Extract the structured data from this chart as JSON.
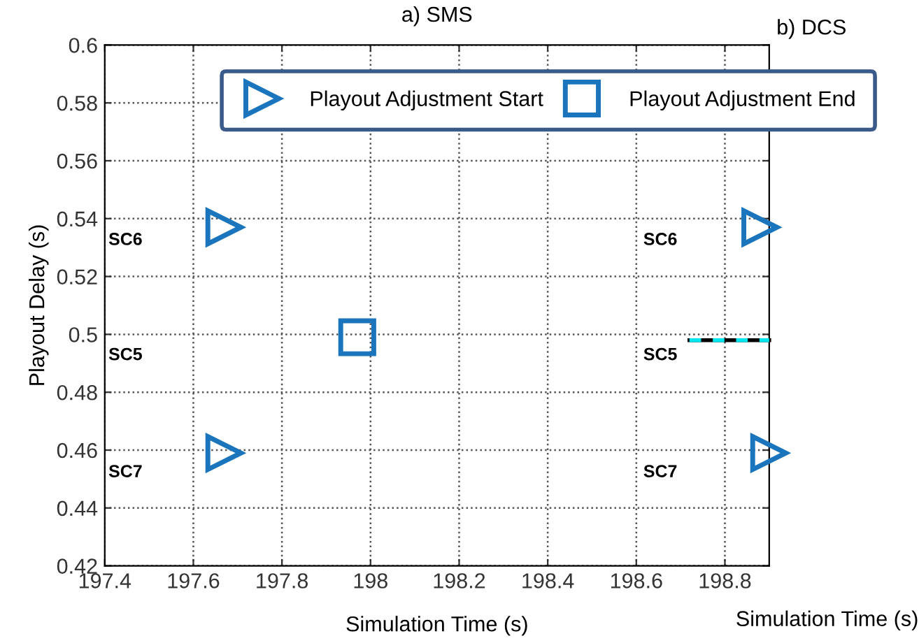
{
  "chart_data": {
    "type": "scatter",
    "title": "a) SMS",
    "xlabel": "Simulation Time (s)",
    "ylabel": "Playout Delay (s)",
    "series": [
      {
        "name": "Playout Adjustment Start",
        "marker": "triangle",
        "color": "#1a75bc",
        "x": [
          197.67,
          197.67,
          198.88,
          198.9
        ],
        "values": [
          0.537,
          0.459,
          0.537,
          0.459
        ]
      },
      {
        "name": "Playout Adjustment End",
        "marker": "square",
        "color": "#1a75bc",
        "x": [
          197.97,
          null
        ],
        "values": [
          0.499,
          null
        ]
      },
      {
        "type": "line",
        "color": "#000000",
        "line_style": "solid",
        "x": [
          198.72,
          198.9
        ],
        "values": [
          0.498,
          0.498
        ]
      },
      {
        "type": "line",
        "color": "#00e5ee",
        "line_style": "dashed",
        "x": [
          198.72,
          198.9
        ],
        "values": [
          0.498,
          0.498
        ]
      }
    ],
    "annotations": [
      "SC6",
      "SC5",
      "SC7",
      "SC6",
      "SC5",
      "SC7",
      "b) DCS",
      "Simulation Time (s)"
    ],
    "xlim": [
      197.4,
      198.9
    ],
    "ylim": [
      0.42,
      0.6
    ],
    "xticks": [
      197.4,
      197.6,
      197.8,
      198,
      198.2,
      198.4,
      198.6,
      198.8
    ],
    "yticks": [
      0.42,
      0.44,
      0.46,
      0.48,
      0.5,
      0.52,
      0.54,
      0.56,
      0.58,
      0.6
    ],
    "grid": true,
    "legend": "top"
  }
}
